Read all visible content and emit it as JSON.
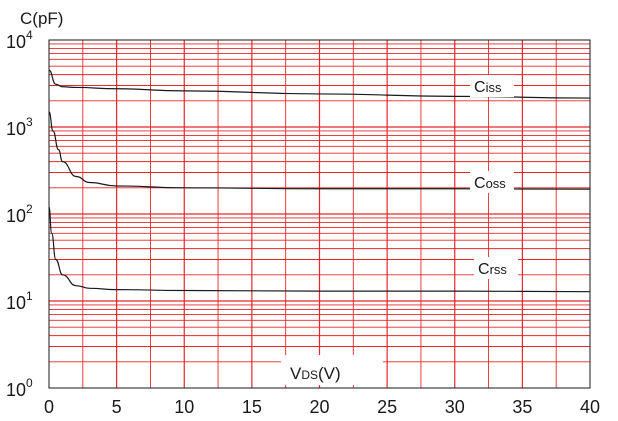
{
  "chart_data": {
    "type": "line",
    "ylabel": "C(pF)",
    "xlabel_main": "V",
    "xlabel_sub": "DS",
    "xlabel_unit": "(V)",
    "xlim": [
      0,
      40
    ],
    "ylim": [
      1,
      10000
    ],
    "y_scale": "log",
    "grid": true,
    "x_ticks": [
      "0",
      "5",
      "10",
      "15",
      "20",
      "25",
      "30",
      "35",
      "40"
    ],
    "y_ticks": [
      {
        "base": "10",
        "exp": "0"
      },
      {
        "base": "10",
        "exp": "1"
      },
      {
        "base": "10",
        "exp": "2"
      },
      {
        "base": "10",
        "exp": "3"
      },
      {
        "base": "10",
        "exp": "4"
      }
    ],
    "series": [
      {
        "name_main": "C",
        "name_sub": "iss",
        "x": [
          0,
          0.5,
          1,
          2,
          5,
          10,
          20,
          30,
          40
        ],
        "y": [
          4500,
          3100,
          2900,
          2850,
          2750,
          2600,
          2400,
          2250,
          2150
        ]
      },
      {
        "name_main": "C",
        "name_sub": "oss",
        "x": [
          0,
          0.3,
          0.7,
          1,
          2,
          3,
          5,
          10,
          20,
          30,
          40
        ],
        "y": [
          1500,
          900,
          550,
          400,
          270,
          230,
          210,
          200,
          195,
          195,
          193
        ]
      },
      {
        "name_main": "C",
        "name_sub": "rss",
        "x": [
          0,
          0.2,
          0.5,
          1,
          2,
          3,
          5,
          10,
          20,
          30,
          40
        ],
        "y": [
          120,
          60,
          30,
          20,
          15,
          14,
          13.5,
          13.2,
          13,
          13,
          12.8
        ]
      }
    ],
    "colors": {
      "grid": "#e8262b",
      "axis": "#1a1a1a",
      "curve": "#1a1a1a"
    }
  }
}
